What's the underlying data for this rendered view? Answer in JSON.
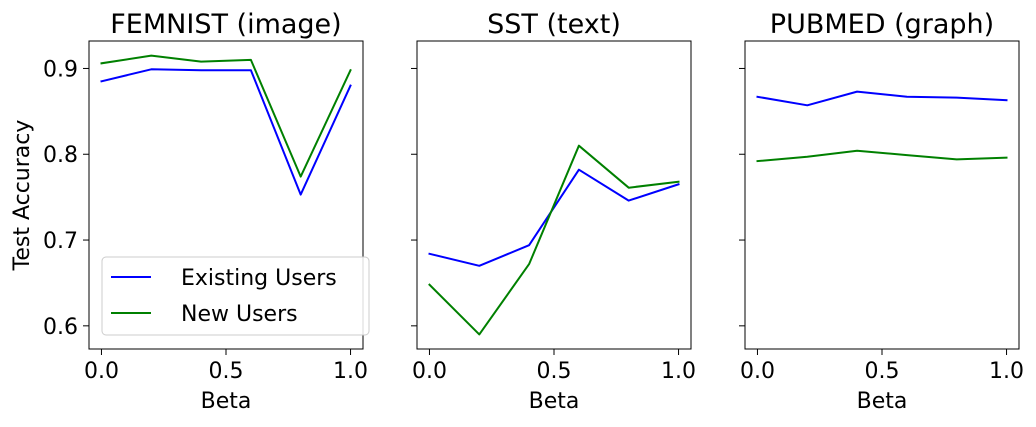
{
  "chart_data": {
    "type": "line",
    "shared_ylabel": "Test Accuracy",
    "ylim": [
      0.573,
      0.932
    ],
    "yticks": [
      "0.6",
      "0.7",
      "0.8",
      "0.9"
    ],
    "ytick_values": [
      0.6,
      0.7,
      0.8,
      0.9
    ],
    "xlim": [
      -0.05,
      1.05
    ],
    "xticks": [
      "0.0",
      "0.5",
      "1.0"
    ],
    "xtick_values": [
      0.0,
      0.5,
      1.0
    ],
    "legend": {
      "placement": "lower-left",
      "entries": [
        "Existing Users",
        "New Users"
      ]
    },
    "series_colors": {
      "Existing Users": "#0000ff",
      "New Users": "#008000"
    },
    "panels": [
      {
        "title": "FEMNIST (image)",
        "xlabel": "Beta",
        "x": [
          0.0,
          0.2,
          0.4,
          0.6,
          0.8,
          1.0
        ],
        "series": [
          {
            "name": "Existing Users",
            "values": [
              0.885,
              0.899,
              0.898,
              0.898,
              0.753,
              0.88
            ]
          },
          {
            "name": "New Users",
            "values": [
              0.906,
              0.915,
              0.908,
              0.91,
              0.774,
              0.898
            ]
          }
        ]
      },
      {
        "title": "SST (text)",
        "xlabel": "Beta",
        "x": [
          0.0,
          0.2,
          0.4,
          0.6,
          0.8,
          1.0
        ],
        "series": [
          {
            "name": "Existing Users",
            "values": [
              0.684,
              0.67,
              0.694,
              0.782,
              0.746,
              0.765
            ]
          },
          {
            "name": "New Users",
            "values": [
              0.648,
              0.59,
              0.672,
              0.81,
              0.761,
              0.768
            ]
          }
        ]
      },
      {
        "title": "PUBMED (graph)",
        "xlabel": "Beta",
        "x": [
          0.0,
          0.2,
          0.4,
          0.6,
          0.8,
          1.0
        ],
        "series": [
          {
            "name": "Existing Users",
            "values": [
              0.867,
              0.857,
              0.873,
              0.867,
              0.866,
              0.863
            ]
          },
          {
            "name": "New Users",
            "values": [
              0.792,
              0.797,
              0.804,
              0.799,
              0.794,
              0.796
            ]
          }
        ]
      }
    ]
  }
}
